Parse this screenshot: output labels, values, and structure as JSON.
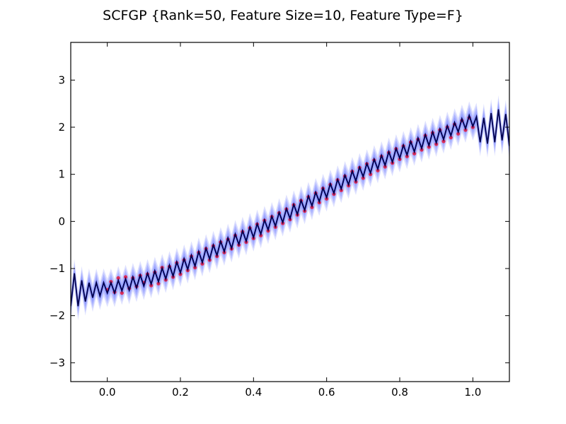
{
  "chart_data": {
    "type": "line",
    "title": "SCFGP {Rank=50, Feature Size=10, Feature Type=F}",
    "xlabel": "",
    "ylabel": "",
    "xlim": [
      -0.1,
      1.1
    ],
    "ylim": [
      -3.4,
      3.8
    ],
    "x_ticks": [
      0.0,
      0.2,
      0.4,
      0.6,
      0.8,
      1.0
    ],
    "x_tick_labels": [
      "0.0",
      "0.2",
      "0.4",
      "0.6",
      "0.8",
      "1.0"
    ],
    "y_ticks": [
      -3,
      -2,
      -1,
      0,
      1,
      2,
      3
    ],
    "y_tick_labels": [
      "−3",
      "−2",
      "−1",
      "0",
      "1",
      "2",
      "3"
    ],
    "grid": false,
    "legend": "none",
    "series": [
      {
        "kind": "prediction-mean",
        "color": "#00004d",
        "x": [
          -0.1,
          -0.09,
          -0.08,
          -0.07,
          -0.06,
          -0.05,
          -0.04,
          -0.03,
          -0.02,
          -0.01,
          0.0,
          0.01,
          0.02,
          0.03,
          0.04,
          0.05,
          0.06,
          0.07,
          0.08,
          0.09,
          0.1,
          0.11,
          0.12,
          0.13,
          0.14,
          0.15,
          0.16,
          0.17,
          0.18,
          0.19,
          0.2,
          0.21,
          0.22,
          0.23,
          0.24,
          0.25,
          0.26,
          0.27,
          0.28,
          0.29,
          0.3,
          0.31,
          0.32,
          0.33,
          0.34,
          0.35,
          0.36,
          0.37,
          0.38,
          0.39,
          0.4,
          0.41,
          0.42,
          0.43,
          0.44,
          0.45,
          0.46,
          0.47,
          0.48,
          0.49,
          0.5,
          0.51,
          0.52,
          0.53,
          0.54,
          0.55,
          0.56,
          0.57,
          0.58,
          0.59,
          0.6,
          0.61,
          0.62,
          0.63,
          0.64,
          0.65,
          0.66,
          0.67,
          0.68,
          0.69,
          0.7,
          0.71,
          0.72,
          0.73,
          0.74,
          0.75,
          0.76,
          0.77,
          0.78,
          0.79,
          0.8,
          0.81,
          0.82,
          0.83,
          0.84,
          0.85,
          0.86,
          0.87,
          0.88,
          0.89,
          0.9,
          0.91,
          0.92,
          0.93,
          0.94,
          0.95,
          0.96,
          0.97,
          0.98,
          0.99,
          1.0,
          1.01,
          1.02,
          1.03,
          1.04,
          1.05,
          1.06,
          1.07,
          1.08,
          1.09,
          1.1
        ],
        "y": [
          -1.8,
          -1.1,
          -1.8,
          -1.25,
          -1.7,
          -1.3,
          -1.62,
          -1.3,
          -1.58,
          -1.3,
          -1.52,
          -1.3,
          -1.52,
          -1.25,
          -1.47,
          -1.22,
          -1.46,
          -1.18,
          -1.41,
          -1.14,
          -1.37,
          -1.1,
          -1.33,
          -1.05,
          -1.28,
          -0.99,
          -1.22,
          -0.93,
          -1.16,
          -0.86,
          -1.09,
          -0.79,
          -1.02,
          -0.72,
          -0.95,
          -0.64,
          -0.87,
          -0.57,
          -0.8,
          -0.5,
          -0.72,
          -0.42,
          -0.64,
          -0.35,
          -0.57,
          -0.27,
          -0.49,
          -0.2,
          -0.42,
          -0.12,
          -0.34,
          -0.05,
          -0.27,
          0.03,
          -0.18,
          0.11,
          -0.1,
          0.19,
          -0.02,
          0.27,
          0.06,
          0.36,
          0.15,
          0.45,
          0.24,
          0.54,
          0.33,
          0.62,
          0.42,
          0.71,
          0.51,
          0.8,
          0.6,
          0.89,
          0.69,
          0.98,
          0.78,
          1.07,
          0.86,
          1.15,
          0.95,
          1.23,
          1.03,
          1.32,
          1.11,
          1.4,
          1.19,
          1.48,
          1.26,
          1.55,
          1.34,
          1.62,
          1.41,
          1.7,
          1.48,
          1.77,
          1.55,
          1.84,
          1.61,
          1.9,
          1.67,
          1.96,
          1.74,
          2.03,
          1.82,
          2.1,
          1.9,
          2.18,
          1.97,
          2.25,
          2.02,
          2.22,
          1.68,
          2.2,
          1.65,
          2.3,
          1.68,
          2.38,
          1.72,
          2.28,
          1.6
        ]
      },
      {
        "kind": "observations",
        "color": "#e8193c",
        "x": [
          0.0,
          0.01,
          0.02,
          0.03,
          0.04,
          0.05,
          0.06,
          0.07,
          0.08,
          0.09,
          0.1,
          0.11,
          0.12,
          0.13,
          0.14,
          0.15,
          0.16,
          0.17,
          0.18,
          0.19,
          0.2,
          0.21,
          0.22,
          0.23,
          0.24,
          0.25,
          0.26,
          0.27,
          0.28,
          0.29,
          0.3,
          0.31,
          0.32,
          0.33,
          0.34,
          0.35,
          0.36,
          0.37,
          0.38,
          0.39,
          0.4,
          0.41,
          0.42,
          0.43,
          0.44,
          0.45,
          0.46,
          0.47,
          0.48,
          0.49,
          0.5,
          0.51,
          0.52,
          0.53,
          0.54,
          0.55,
          0.56,
          0.57,
          0.58,
          0.59,
          0.6,
          0.61,
          0.62,
          0.63,
          0.64,
          0.65,
          0.66,
          0.67,
          0.68,
          0.69,
          0.7,
          0.71,
          0.72,
          0.73,
          0.74,
          0.75,
          0.76,
          0.77,
          0.78,
          0.79,
          0.8,
          0.81,
          0.82,
          0.83,
          0.84,
          0.85,
          0.86,
          0.87,
          0.88,
          0.89,
          0.9,
          0.91,
          0.92,
          0.93,
          0.94,
          0.95,
          0.96,
          0.97,
          0.98,
          0.99,
          1.0
        ],
        "y": [
          -1.45,
          -1.28,
          -1.5,
          -1.2,
          -1.52,
          -1.18,
          -1.42,
          -1.2,
          -1.38,
          -1.15,
          -1.3,
          -1.12,
          -1.36,
          -1.08,
          -1.32,
          -0.98,
          -1.24,
          -0.96,
          -1.18,
          -0.88,
          -1.12,
          -0.82,
          -1.04,
          -0.74,
          -0.98,
          -0.66,
          -0.9,
          -0.58,
          -0.82,
          -0.52,
          -0.74,
          -0.44,
          -0.66,
          -0.38,
          -0.58,
          -0.3,
          -0.5,
          -0.22,
          -0.44,
          -0.14,
          -0.36,
          -0.06,
          -0.3,
          0.02,
          -0.2,
          0.1,
          -0.12,
          0.18,
          -0.04,
          0.26,
          0.04,
          0.35,
          0.14,
          0.44,
          0.22,
          0.52,
          0.3,
          0.6,
          0.4,
          0.7,
          0.48,
          0.78,
          0.58,
          0.88,
          0.66,
          0.96,
          0.76,
          1.06,
          0.84,
          1.14,
          0.92,
          1.22,
          1.0,
          1.3,
          1.08,
          1.38,
          1.16,
          1.46,
          1.24,
          1.54,
          1.32,
          1.6,
          1.38,
          1.68,
          1.44,
          1.74,
          1.52,
          1.82,
          1.58,
          1.88,
          1.64,
          1.94,
          1.7,
          2.0,
          1.78,
          2.06,
          1.86,
          2.14,
          1.94,
          2.2,
          2.0
        ]
      }
    ],
    "uncertainty_band": {
      "color": "#3344ff",
      "half_widths": [
        0.06,
        0.11,
        0.17,
        0.23,
        0.3
      ]
    }
  }
}
